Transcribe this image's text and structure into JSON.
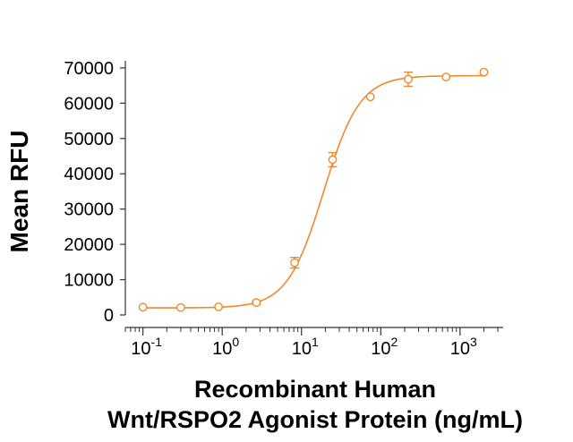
{
  "colors": {
    "series": "#EE8A2E",
    "axis": "#333333",
    "text": "#000000"
  },
  "chart_data": {
    "type": "scatter",
    "title": "",
    "xlabel_lines": [
      "Recombinant Human",
      "Wnt/RSPO2 Agonist Protein (ng/mL)"
    ],
    "ylabel": "Mean RFU",
    "x_scale": "log",
    "xlim": [
      0.06,
      3500
    ],
    "ylim": [
      0,
      72000
    ],
    "y_ticks": [
      0,
      10000,
      20000,
      30000,
      40000,
      50000,
      60000,
      70000
    ],
    "y_tick_labels": [
      "0",
      "10000",
      "20000",
      "30000",
      "40000",
      "50000",
      "60000",
      "70000"
    ],
    "x_ticks": [
      {
        "value": 0.1,
        "base": "10",
        "exp": "-1"
      },
      {
        "value": 1,
        "base": "10",
        "exp": "0"
      },
      {
        "value": 10,
        "base": "10",
        "exp": "1"
      },
      {
        "value": 100,
        "base": "10",
        "exp": "2"
      },
      {
        "value": 1000,
        "base": "10",
        "exp": "3"
      }
    ],
    "grid": false,
    "legend": "none",
    "points": [
      {
        "x": 0.1,
        "y": 2200,
        "err": 0
      },
      {
        "x": 0.3,
        "y": 2100,
        "err": 0
      },
      {
        "x": 0.9,
        "y": 2300,
        "err": 0
      },
      {
        "x": 2.7,
        "y": 3500,
        "err": 500
      },
      {
        "x": 8.2,
        "y": 14800,
        "err": 1500
      },
      {
        "x": 24.7,
        "y": 44000,
        "err": 2000
      },
      {
        "x": 74,
        "y": 61800,
        "err": 0
      },
      {
        "x": 222,
        "y": 66800,
        "err": 2000
      },
      {
        "x": 667,
        "y": 67400,
        "err": 0
      },
      {
        "x": 2000,
        "y": 68800,
        "err": 0
      }
    ],
    "fit_curve": {
      "bottom": 2000,
      "top": 67800,
      "ec50": 19,
      "hill": 1.9
    }
  }
}
